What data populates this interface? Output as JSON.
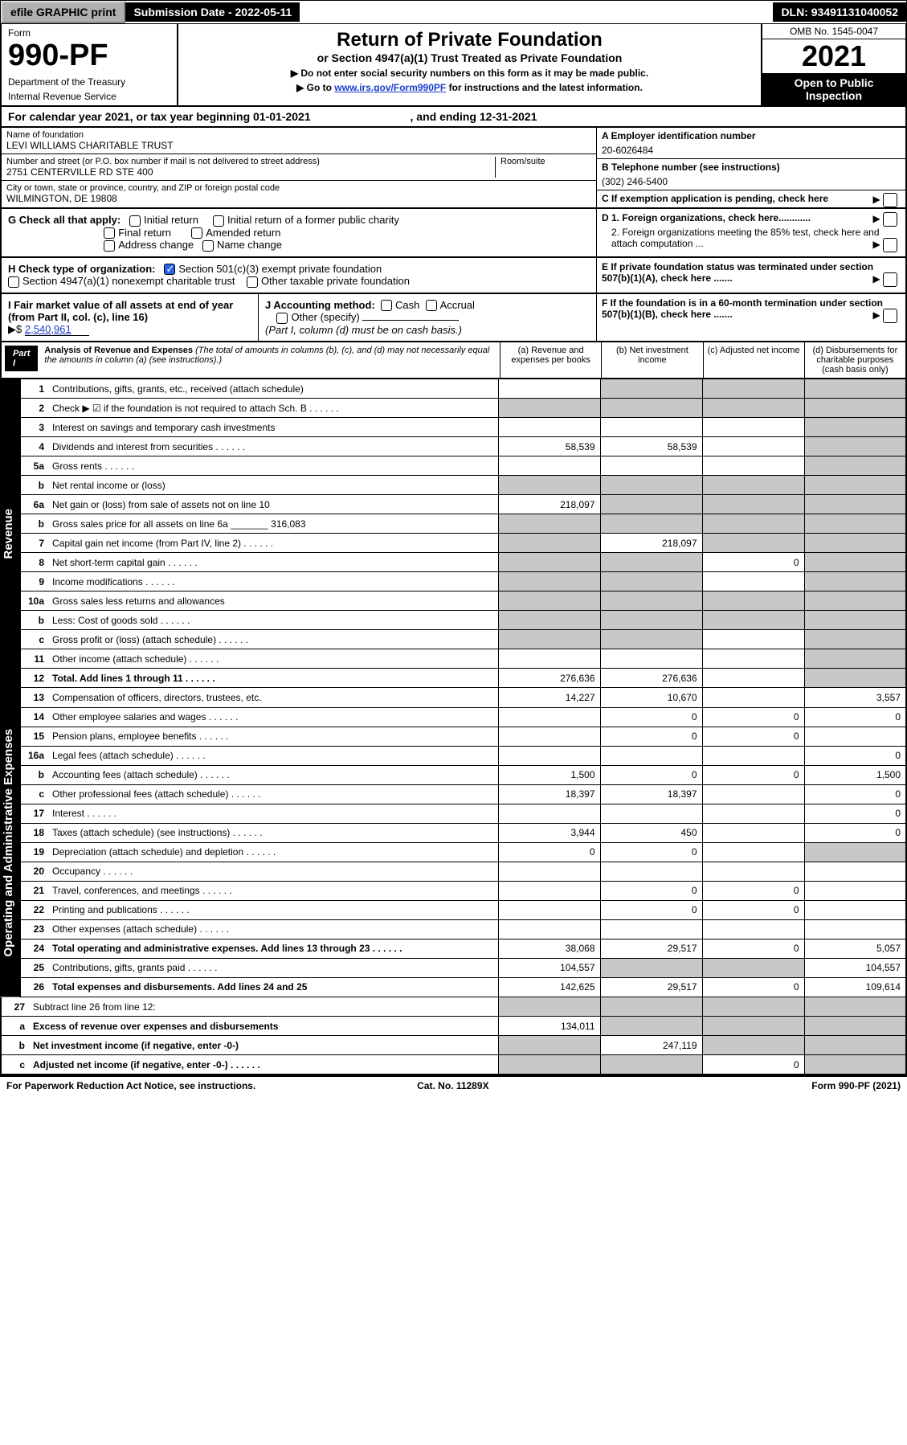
{
  "topbar": {
    "efile": "efile GRAPHIC print",
    "subdate_label": "Submission Date - ",
    "subdate": "2022-05-11",
    "dln_label": "DLN: ",
    "dln": "93491131040052"
  },
  "header": {
    "form_word": "Form",
    "form_num": "990-PF",
    "dept": "Department of the Treasury",
    "irs": "Internal Revenue Service",
    "title": "Return of Private Foundation",
    "subtitle": "or Section 4947(a)(1) Trust Treated as Private Foundation",
    "note1": "▶ Do not enter social security numbers on this form as it may be made public.",
    "note2_pre": "▶ Go to ",
    "note2_link": "www.irs.gov/Form990PF",
    "note2_post": " for instructions and the latest information.",
    "omb": "OMB No. 1545-0047",
    "year": "2021",
    "open": "Open to Public Inspection"
  },
  "cal": {
    "text_pre": "For calendar year 2021, or tax year beginning ",
    "begin": "01-01-2021",
    "mid": " , and ending ",
    "end": "12-31-2021"
  },
  "id": {
    "name_lbl": "Name of foundation",
    "name": "LEVI WILLIAMS CHARITABLE TRUST",
    "addr_lbl": "Number and street (or P.O. box number if mail is not delivered to street address)",
    "addr": "2751 CENTERVILLE RD STE 400",
    "room_lbl": "Room/suite",
    "city_lbl": "City or town, state or province, country, and ZIP or foreign postal code",
    "city": "WILMINGTON, DE  19808",
    "a_lbl": "A Employer identification number",
    "a_val": "20-6026484",
    "b_lbl": "B Telephone number (see instructions)",
    "b_val": "(302) 246-5400",
    "c_lbl": "C If exemption application is pending, check here",
    "d1": "D 1. Foreign organizations, check here............",
    "d2": "2. Foreign organizations meeting the 85% test, check here and attach computation ...",
    "e": "E  If private foundation status was terminated under section 507(b)(1)(A), check here .......",
    "f": "F  If the foundation is in a 60-month termination under section 507(b)(1)(B), check here ......."
  },
  "g": {
    "label": "G Check all that apply:",
    "initial": "Initial return",
    "final": "Final return",
    "addr": "Address change",
    "initial_former": "Initial return of a former public charity",
    "amended": "Amended return",
    "name": "Name change"
  },
  "h": {
    "label": "H Check type of organization:",
    "c3": "Section 501(c)(3) exempt private foundation",
    "t4947": "Section 4947(a)(1) nonexempt charitable trust",
    "other_tax": "Other taxable private foundation"
  },
  "i": {
    "label": "I Fair market value of all assets at end of year (from Part II, col. (c), line 16)",
    "arrow": "▶$",
    "value": "2,540,961"
  },
  "j": {
    "label": "J Accounting method:",
    "cash": "Cash",
    "accrual": "Accrual",
    "other": "Other (specify)",
    "note": "(Part I, column (d) must be on cash basis.)"
  },
  "part1": {
    "label": "Part I",
    "title": "Analysis of Revenue and Expenses",
    "paren": " (The total of amounts in columns (b), (c), and (d) may not necessarily equal the amounts in column (a) (see instructions).)",
    "ca": "(a)  Revenue and expenses per books",
    "cb": "(b)  Net investment income",
    "cc": "(c)  Adjusted net income",
    "cd": "(d)  Disbursements for charitable purposes (cash basis only)"
  },
  "side": {
    "rev": "Revenue",
    "exp": "Operating and Administrative Expenses"
  },
  "rows": [
    {
      "n": "1",
      "label": "Contributions, gifts, grants, etc., received (attach schedule)",
      "a": "",
      "b": "s",
      "c": "s",
      "d": "s"
    },
    {
      "n": "2",
      "label": "Check ▶ ☑ if the foundation is not required to attach Sch. B",
      "a": "s",
      "b": "s",
      "c": "s",
      "d": "s",
      "dots": true
    },
    {
      "n": "3",
      "label": "Interest on savings and temporary cash investments",
      "a": "",
      "b": "",
      "c": "",
      "d": "s"
    },
    {
      "n": "4",
      "label": "Dividends and interest from securities",
      "a": "58,539",
      "b": "58,539",
      "c": "",
      "d": "s",
      "dots": true
    },
    {
      "n": "5a",
      "label": "Gross rents",
      "a": "",
      "b": "",
      "c": "",
      "d": "s",
      "dots": true
    },
    {
      "n": "b",
      "label": "Net rental income or (loss)",
      "a": "s",
      "b": "s",
      "c": "s",
      "d": "s"
    },
    {
      "n": "6a",
      "label": "Net gain or (loss) from sale of assets not on line 10",
      "a": "218,097",
      "b": "s",
      "c": "s",
      "d": "s"
    },
    {
      "n": "b",
      "label": "Gross sales price for all assets on line 6a _______ 316,083",
      "a": "s",
      "b": "s",
      "c": "s",
      "d": "s"
    },
    {
      "n": "7",
      "label": "Capital gain net income (from Part IV, line 2)",
      "a": "s",
      "b": "218,097",
      "c": "s",
      "d": "s",
      "dots": true
    },
    {
      "n": "8",
      "label": "Net short-term capital gain",
      "a": "s",
      "b": "s",
      "c": "0",
      "d": "s",
      "dots": true
    },
    {
      "n": "9",
      "label": "Income modifications",
      "a": "s",
      "b": "s",
      "c": "",
      "d": "s",
      "dots": true
    },
    {
      "n": "10a",
      "label": "Gross sales less returns and allowances",
      "a": "s",
      "b": "s",
      "c": "s",
      "d": "s"
    },
    {
      "n": "b",
      "label": "Less: Cost of goods sold",
      "a": "s",
      "b": "s",
      "c": "s",
      "d": "s",
      "dots": true
    },
    {
      "n": "c",
      "label": "Gross profit or (loss) (attach schedule)",
      "a": "s",
      "b": "s",
      "c": "",
      "d": "s",
      "dots": true
    },
    {
      "n": "11",
      "label": "Other income (attach schedule)",
      "a": "",
      "b": "",
      "c": "",
      "d": "s",
      "dots": true
    },
    {
      "n": "12",
      "label": "Total. Add lines 1 through 11",
      "a": "276,636",
      "b": "276,636",
      "c": "",
      "d": "s",
      "bold": true,
      "dots": true
    }
  ],
  "exp_rows": [
    {
      "n": "13",
      "label": "Compensation of officers, directors, trustees, etc.",
      "a": "14,227",
      "b": "10,670",
      "c": "",
      "d": "3,557"
    },
    {
      "n": "14",
      "label": "Other employee salaries and wages",
      "a": "",
      "b": "0",
      "c": "0",
      "d": "0",
      "dots": true
    },
    {
      "n": "15",
      "label": "Pension plans, employee benefits",
      "a": "",
      "b": "0",
      "c": "0",
      "d": "",
      "dots": true
    },
    {
      "n": "16a",
      "label": "Legal fees (attach schedule)",
      "a": "",
      "b": "",
      "c": "",
      "d": "0",
      "dots": true
    },
    {
      "n": "b",
      "label": "Accounting fees (attach schedule)",
      "a": "1,500",
      "b": "0",
      "c": "0",
      "d": "1,500",
      "dots": true
    },
    {
      "n": "c",
      "label": "Other professional fees (attach schedule)",
      "a": "18,397",
      "b": "18,397",
      "c": "",
      "d": "0",
      "dots": true
    },
    {
      "n": "17",
      "label": "Interest",
      "a": "",
      "b": "",
      "c": "",
      "d": "0",
      "dots": true
    },
    {
      "n": "18",
      "label": "Taxes (attach schedule) (see instructions)",
      "a": "3,944",
      "b": "450",
      "c": "",
      "d": "0",
      "dots": true
    },
    {
      "n": "19",
      "label": "Depreciation (attach schedule) and depletion",
      "a": "0",
      "b": "0",
      "c": "",
      "d": "s",
      "dots": true
    },
    {
      "n": "20",
      "label": "Occupancy",
      "a": "",
      "b": "",
      "c": "",
      "d": "",
      "dots": true
    },
    {
      "n": "21",
      "label": "Travel, conferences, and meetings",
      "a": "",
      "b": "0",
      "c": "0",
      "d": "",
      "dots": true
    },
    {
      "n": "22",
      "label": "Printing and publications",
      "a": "",
      "b": "0",
      "c": "0",
      "d": "",
      "dots": true
    },
    {
      "n": "23",
      "label": "Other expenses (attach schedule)",
      "a": "",
      "b": "",
      "c": "",
      "d": "",
      "dots": true
    },
    {
      "n": "24",
      "label": "Total operating and administrative expenses. Add lines 13 through 23",
      "a": "38,068",
      "b": "29,517",
      "c": "0",
      "d": "5,057",
      "bold": true,
      "dots": true
    },
    {
      "n": "25",
      "label": "Contributions, gifts, grants paid",
      "a": "104,557",
      "b": "s",
      "c": "s",
      "d": "104,557",
      "dots": true
    },
    {
      "n": "26",
      "label": "Total expenses and disbursements. Add lines 24 and 25",
      "a": "142,625",
      "b": "29,517",
      "c": "0",
      "d": "109,614",
      "bold": true
    }
  ],
  "tail_rows": [
    {
      "n": "27",
      "label": "Subtract line 26 from line 12:",
      "a": "s",
      "b": "s",
      "c": "s",
      "d": "s"
    },
    {
      "n": "a",
      "label": "Excess of revenue over expenses and disbursements",
      "a": "134,011",
      "b": "s",
      "c": "s",
      "d": "s",
      "bold": true
    },
    {
      "n": "b",
      "label": "Net investment income (if negative, enter -0-)",
      "a": "s",
      "b": "247,119",
      "c": "s",
      "d": "s",
      "bold": true
    },
    {
      "n": "c",
      "label": "Adjusted net income (if negative, enter -0-)",
      "a": "s",
      "b": "s",
      "c": "0",
      "d": "s",
      "bold": true,
      "dots": true
    }
  ],
  "footer": {
    "left": "For Paperwork Reduction Act Notice, see instructions.",
    "mid": "Cat. No. 11289X",
    "right": "Form 990-PF (2021)"
  },
  "colors": {
    "shade": "#c8c8c8",
    "black": "#000000",
    "link": "#1a3fcb",
    "check": "#2563eb"
  }
}
